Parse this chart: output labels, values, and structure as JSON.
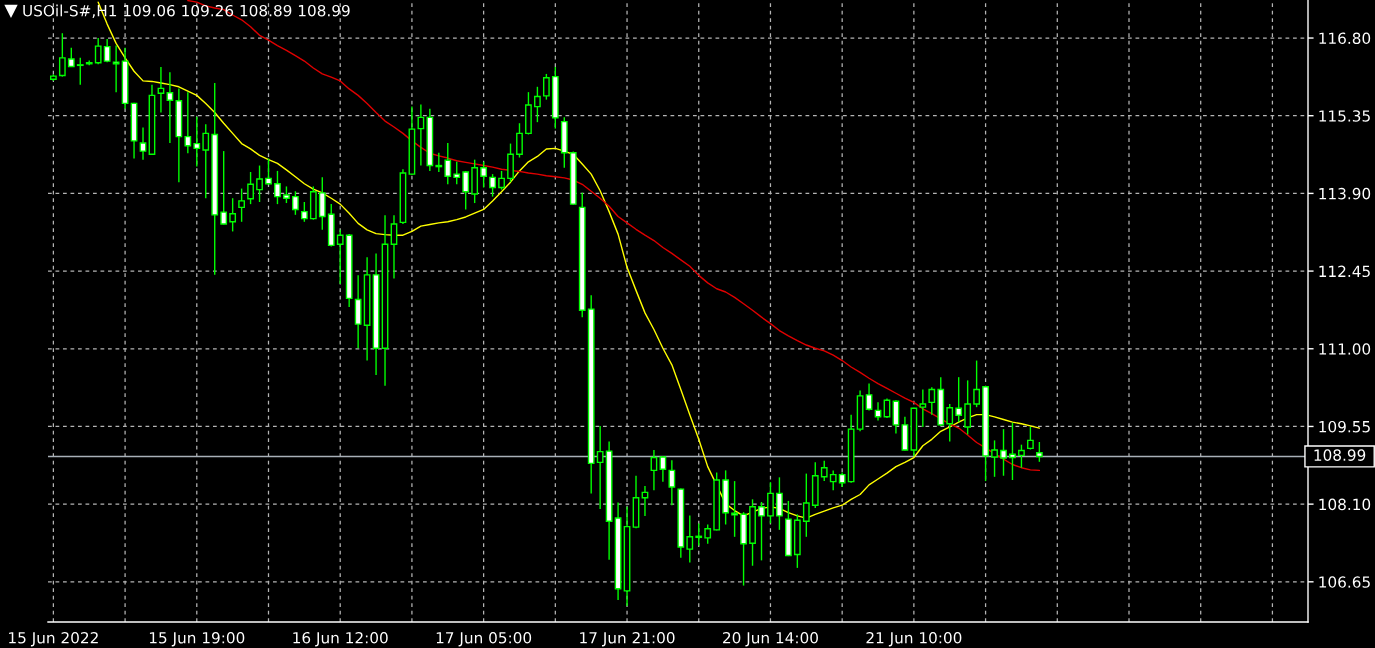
{
  "chart_data": {
    "type": "candlestick",
    "title": "USOil-S#,H1 109.06 109.26 108.89 108.99",
    "categories": [
      "15 Jun 2022",
      null,
      null,
      null,
      null,
      null,
      null,
      null,
      null,
      null,
      null,
      null,
      null,
      null,
      null,
      null,
      "15 Jun 19:00",
      null,
      null,
      null,
      null,
      null,
      null,
      null,
      null,
      null,
      null,
      null,
      null,
      null,
      null,
      null,
      "16 Jun 12:00",
      null,
      null,
      null,
      null,
      null,
      null,
      null,
      null,
      null,
      null,
      null,
      null,
      null,
      null,
      null,
      "17 Jun 05:00",
      null,
      null,
      null,
      null,
      null,
      null,
      null,
      null,
      null,
      null,
      null,
      null,
      null,
      null,
      null,
      "17 Jun 21:00",
      null,
      null,
      null,
      null,
      null,
      null,
      null,
      null,
      null,
      null,
      null,
      null,
      null,
      null,
      null,
      "20 Jun 14:00",
      null,
      null,
      null,
      null,
      null,
      null,
      null,
      null,
      null,
      null,
      null,
      null,
      null,
      null,
      null,
      "21 Jun 10:00",
      null,
      null,
      null,
      null,
      null,
      null,
      null,
      null,
      null,
      null,
      null,
      null,
      null,
      null
    ],
    "ohlc": [
      [
        116.03,
        116.12,
        116.0,
        116.09
      ],
      [
        116.1,
        116.89,
        116.08,
        116.43
      ],
      [
        116.41,
        116.62,
        116.26,
        116.27
      ],
      [
        116.29,
        116.43,
        115.93,
        116.3
      ],
      [
        116.32,
        116.38,
        116.29,
        116.34
      ],
      [
        116.34,
        116.8,
        116.31,
        116.65
      ],
      [
        116.64,
        116.78,
        116.35,
        116.37
      ],
      [
        116.35,
        116.66,
        115.79,
        116.32
      ],
      [
        116.37,
        116.62,
        115.48,
        115.58
      ],
      [
        115.58,
        115.59,
        114.55,
        114.88
      ],
      [
        114.84,
        115.13,
        114.53,
        114.69
      ],
      [
        114.63,
        115.93,
        114.62,
        115.73
      ],
      [
        115.77,
        116.26,
        115.41,
        115.86
      ],
      [
        115.78,
        116.16,
        114.84,
        115.64
      ],
      [
        115.63,
        115.86,
        114.11,
        114.96
      ],
      [
        114.96,
        115.79,
        114.65,
        114.79
      ],
      [
        114.83,
        115.33,
        114.4,
        114.74
      ],
      [
        114.71,
        115.19,
        113.81,
        115.02
      ],
      [
        115.0,
        115.96,
        112.38,
        113.5
      ],
      [
        113.55,
        114.69,
        113.32,
        113.33
      ],
      [
        113.37,
        113.81,
        113.19,
        113.52
      ],
      [
        113.64,
        113.99,
        113.37,
        113.76
      ],
      [
        113.8,
        114.3,
        113.7,
        114.07
      ],
      [
        113.97,
        114.42,
        113.74,
        114.17
      ],
      [
        114.18,
        114.55,
        114.07,
        114.08
      ],
      [
        114.08,
        114.32,
        113.7,
        113.84
      ],
      [
        113.87,
        114.03,
        113.72,
        113.81
      ],
      [
        113.84,
        113.94,
        113.5,
        113.6
      ],
      [
        113.56,
        113.74,
        113.37,
        113.43
      ],
      [
        113.43,
        114.03,
        113.41,
        113.93
      ],
      [
        113.91,
        114.2,
        113.22,
        113.47
      ],
      [
        113.51,
        113.7,
        112.91,
        112.93
      ],
      [
        112.95,
        113.22,
        112.21,
        113.12
      ],
      [
        113.12,
        113.14,
        111.78,
        111.94
      ],
      [
        111.92,
        112.37,
        111.01,
        111.46
      ],
      [
        111.44,
        112.71,
        110.78,
        112.38
      ],
      [
        112.38,
        112.78,
        110.51,
        111.01
      ],
      [
        111.01,
        113.49,
        110.31,
        112.95
      ],
      [
        112.95,
        113.49,
        112.31,
        113.33
      ],
      [
        113.36,
        114.35,
        113.33,
        114.28
      ],
      [
        114.26,
        115.52,
        114.25,
        115.1
      ],
      [
        115.11,
        115.56,
        114.42,
        115.32
      ],
      [
        115.32,
        115.48,
        114.32,
        114.42
      ],
      [
        114.42,
        114.66,
        114.3,
        114.4
      ],
      [
        114.52,
        114.84,
        114.07,
        114.22
      ],
      [
        114.26,
        114.49,
        114.07,
        114.2
      ],
      [
        114.3,
        114.32,
        113.6,
        113.93
      ],
      [
        113.89,
        114.53,
        113.72,
        114.38
      ],
      [
        114.38,
        114.49,
        114.01,
        114.22
      ],
      [
        114.2,
        114.26,
        113.84,
        114.01
      ],
      [
        114.01,
        114.32,
        113.97,
        114.18
      ],
      [
        114.18,
        114.83,
        114.11,
        114.63
      ],
      [
        114.63,
        115.21,
        114.57,
        115.02
      ],
      [
        115.02,
        115.79,
        115.0,
        115.55
      ],
      [
        115.52,
        115.89,
        115.23,
        115.71
      ],
      [
        115.72,
        116.13,
        115.65,
        116.06
      ],
      [
        116.08,
        116.26,
        115.11,
        115.31
      ],
      [
        115.24,
        115.32,
        114.38,
        114.66
      ],
      [
        114.66,
        114.68,
        113.69,
        113.7
      ],
      [
        113.64,
        113.91,
        111.59,
        111.72
      ],
      [
        111.74,
        112.0,
        108.3,
        108.86
      ],
      [
        108.88,
        109.56,
        108.01,
        109.08
      ],
      [
        109.09,
        109.27,
        107.06,
        107.78
      ],
      [
        107.84,
        108.13,
        106.31,
        106.52
      ],
      [
        106.48,
        108.05,
        106.2,
        107.68
      ],
      [
        107.67,
        108.63,
        107.65,
        108.22
      ],
      [
        108.22,
        108.44,
        107.88,
        108.32
      ],
      [
        108.73,
        109.11,
        108.36,
        108.97
      ],
      [
        108.98,
        109.0,
        108.52,
        108.75
      ],
      [
        108.73,
        108.92,
        108.08,
        108.42
      ],
      [
        108.38,
        108.39,
        107.1,
        107.3
      ],
      [
        107.26,
        107.89,
        107.01,
        107.49
      ],
      [
        107.48,
        107.74,
        107.33,
        107.5
      ],
      [
        107.47,
        107.72,
        107.36,
        107.64
      ],
      [
        107.62,
        108.69,
        107.61,
        108.55
      ],
      [
        108.55,
        108.73,
        107.72,
        107.94
      ],
      [
        107.93,
        108.53,
        107.49,
        107.9
      ],
      [
        107.91,
        107.95,
        106.58,
        107.36
      ],
      [
        107.37,
        108.19,
        106.95,
        108.05
      ],
      [
        108.05,
        108.14,
        107.05,
        107.88
      ],
      [
        107.88,
        108.51,
        107.74,
        108.3
      ],
      [
        108.3,
        108.6,
        107.62,
        107.88
      ],
      [
        107.82,
        108.16,
        107.13,
        107.14
      ],
      [
        107.16,
        107.91,
        106.91,
        107.8
      ],
      [
        107.78,
        108.67,
        107.49,
        108.12
      ],
      [
        108.08,
        108.88,
        108.03,
        108.63
      ],
      [
        108.61,
        108.91,
        108.53,
        108.78
      ],
      [
        108.52,
        108.73,
        108.36,
        108.65
      ],
      [
        108.65,
        108.69,
        108.42,
        108.5
      ],
      [
        108.52,
        109.77,
        108.5,
        109.5
      ],
      [
        109.5,
        110.22,
        109.46,
        110.12
      ],
      [
        110.14,
        110.35,
        109.85,
        109.87
      ],
      [
        109.85,
        110.0,
        109.66,
        109.73
      ],
      [
        109.73,
        110.07,
        109.71,
        110.04
      ],
      [
        110.02,
        110.04,
        109.42,
        109.58
      ],
      [
        109.58,
        109.73,
        109.1,
        109.11
      ],
      [
        109.11,
        109.9,
        109.0,
        109.89
      ],
      [
        109.91,
        110.24,
        109.54,
        109.97
      ],
      [
        110.0,
        110.28,
        109.77,
        110.24
      ],
      [
        110.24,
        110.47,
        109.56,
        109.58
      ],
      [
        109.6,
        109.97,
        109.27,
        109.9
      ],
      [
        109.89,
        110.47,
        109.63,
        109.76
      ],
      [
        109.54,
        110.41,
        109.4,
        109.97
      ],
      [
        109.97,
        110.78,
        109.91,
        110.24
      ],
      [
        110.29,
        110.3,
        108.53,
        109.0
      ],
      [
        108.98,
        109.29,
        108.61,
        109.11
      ],
      [
        109.1,
        109.5,
        108.63,
        108.96
      ],
      [
        109.03,
        109.62,
        108.55,
        108.97
      ],
      [
        109.01,
        109.21,
        108.78,
        109.1
      ],
      [
        109.14,
        109.54,
        109.12,
        109.29
      ],
      [
        109.06,
        109.26,
        108.89,
        108.99
      ]
    ],
    "color": "#00ff00",
    "colors": [
      "#000000",
      "#000000",
      "#ffffff",
      "#000000",
      "#000000",
      "#000000",
      "#ffffff",
      "#ffffff",
      "#ffffff",
      "#ffffff",
      "#ffffff",
      "#000000",
      "#000000",
      "#ffffff",
      "#ffffff",
      "#ffffff",
      "#ffffff",
      "#000000",
      "#ffffff",
      "#ffffff",
      "#000000",
      "#000000",
      "#000000",
      "#000000",
      "#ffffff",
      "#ffffff",
      "#ffffff",
      "#ffffff",
      "#ffffff",
      "#000000",
      "#ffffff",
      "#ffffff",
      "#000000",
      "#ffffff",
      "#ffffff",
      "#000000",
      "#ffffff",
      "#000000",
      "#000000",
      "#000000",
      "#000000",
      "#000000",
      "#ffffff",
      "#ffffff",
      "#ffffff",
      "#ffffff",
      "#ffffff",
      "#000000",
      "#ffffff",
      "#ffffff",
      "#000000",
      "#000000",
      "#000000",
      "#000000",
      "#000000",
      "#000000",
      "#ffffff",
      "#ffffff",
      "#ffffff",
      "#ffffff",
      "#ffffff",
      "#000000",
      "#ffffff",
      "#ffffff",
      "#000000",
      "#000000",
      "#000000",
      "#000000",
      "#ffffff",
      "#ffffff",
      "#ffffff",
      "#000000",
      "#000000",
      "#000000",
      "#000000",
      "#ffffff",
      "#ffffff",
      "#ffffff",
      "#000000",
      "#ffffff",
      "#000000",
      "#ffffff",
      "#ffffff",
      "#000000",
      "#000000",
      "#000000",
      "#000000",
      "#000000",
      "#ffffff",
      "#000000",
      "#000000",
      "#ffffff",
      "#ffffff",
      "#000000",
      "#ffffff",
      "#ffffff",
      "#000000",
      "#000000",
      "#000000",
      "#ffffff",
      "#000000",
      "#ffffff",
      "#000000",
      "#000000",
      "#ffffff",
      "#000000",
      "#ffffff",
      "#ffffff",
      "#000000",
      "#000000",
      "#ffffff"
    ],
    "series": [
      {
        "type": "line",
        "color": "#ffff00",
        "values": [
          null,
          null,
          null,
          null,
          null,
          117.47,
          117.06,
          116.7,
          116.43,
          116.18,
          116.0,
          115.99,
          115.96,
          115.93,
          115.89,
          115.81,
          115.73,
          115.58,
          115.41,
          115.21,
          115.02,
          114.83,
          114.73,
          114.61,
          114.53,
          114.46,
          114.34,
          114.21,
          114.08,
          113.98,
          113.91,
          113.81,
          113.7,
          113.53,
          113.34,
          113.22,
          113.15,
          113.13,
          113.12,
          113.12,
          113.19,
          113.29,
          113.32,
          113.35,
          113.37,
          113.41,
          113.46,
          113.53,
          113.6,
          113.76,
          113.93,
          114.11,
          114.32,
          114.49,
          114.59,
          114.73,
          114.74,
          114.69,
          114.63,
          114.45,
          114.26,
          113.95,
          113.56,
          113.14,
          112.52,
          112.09,
          111.67,
          111.36,
          111.01,
          110.7,
          110.24,
          109.77,
          109.31,
          108.8,
          null,
          108.11,
          107.98,
          107.88,
          107.95,
          108.02,
          108.05,
          108.02,
          107.94,
          107.88,
          107.84,
          107.91,
          107.97,
          108.03,
          108.08,
          108.19,
          108.28,
          108.46,
          108.57,
          108.68,
          108.8,
          108.88,
          108.97,
          109.19,
          109.31,
          109.46,
          109.54,
          109.63,
          109.71,
          109.77,
          109.77,
          109.73,
          109.68,
          109.63,
          109.6,
          109.56,
          109.52
        ]
      },
      {
        "type": "line",
        "color": "#e00000",
        "values": [
          null,
          null,
          null,
          null,
          null,
          null,
          null,
          null,
          null,
          null,
          null,
          null,
          null,
          null,
          null,
          117.5,
          117.47,
          117.4,
          117.36,
          117.33,
          117.23,
          117.14,
          117.01,
          116.85,
          116.76,
          116.66,
          116.57,
          116.47,
          116.37,
          116.24,
          116.13,
          116.07,
          116.0,
          115.85,
          115.73,
          115.58,
          115.41,
          115.25,
          115.14,
          115.02,
          114.88,
          114.76,
          114.65,
          114.6,
          114.56,
          114.51,
          114.48,
          114.45,
          114.42,
          114.39,
          114.35,
          114.33,
          114.31,
          114.28,
          114.26,
          114.23,
          114.21,
          114.19,
          114.15,
          114.07,
          113.94,
          113.81,
          113.66,
          113.47,
          113.35,
          113.23,
          113.12,
          113.02,
          112.89,
          112.78,
          112.66,
          112.54,
          112.37,
          112.23,
          112.12,
          112.06,
          111.96,
          111.84,
          111.72,
          111.59,
          111.47,
          111.34,
          111.24,
          111.15,
          111.07,
          111.01,
          110.96,
          110.88,
          110.78,
          110.66,
          110.56,
          110.45,
          110.35,
          110.26,
          110.17,
          110.08,
          110.0,
          109.88,
          109.79,
          109.69,
          109.6,
          109.52,
          109.39,
          109.25,
          109.15,
          109.04,
          108.94,
          108.84,
          108.78,
          108.74,
          108.73
        ]
      }
    ],
    "ylim": [
      105.9,
      117.51
    ],
    "yticks": [
      {
        "value": 106.65,
        "label": "106.65"
      },
      {
        "value": 108.1,
        "label": "108.10"
      },
      {
        "value": 109.55,
        "label": "109.55"
      },
      {
        "value": 111,
        "label": "111.00"
      },
      {
        "value": 112.45,
        "label": "112.45"
      },
      {
        "value": 113.9,
        "label": "113.90"
      },
      {
        "value": 115.35,
        "label": "115.35"
      },
      {
        "value": 116.8,
        "label": "116.80"
      }
    ],
    "grid": true,
    "ref_lines": [
      {
        "axis": "y",
        "value": 108.99,
        "label": "108.99",
        "color": "#a8b0b8"
      }
    ]
  }
}
